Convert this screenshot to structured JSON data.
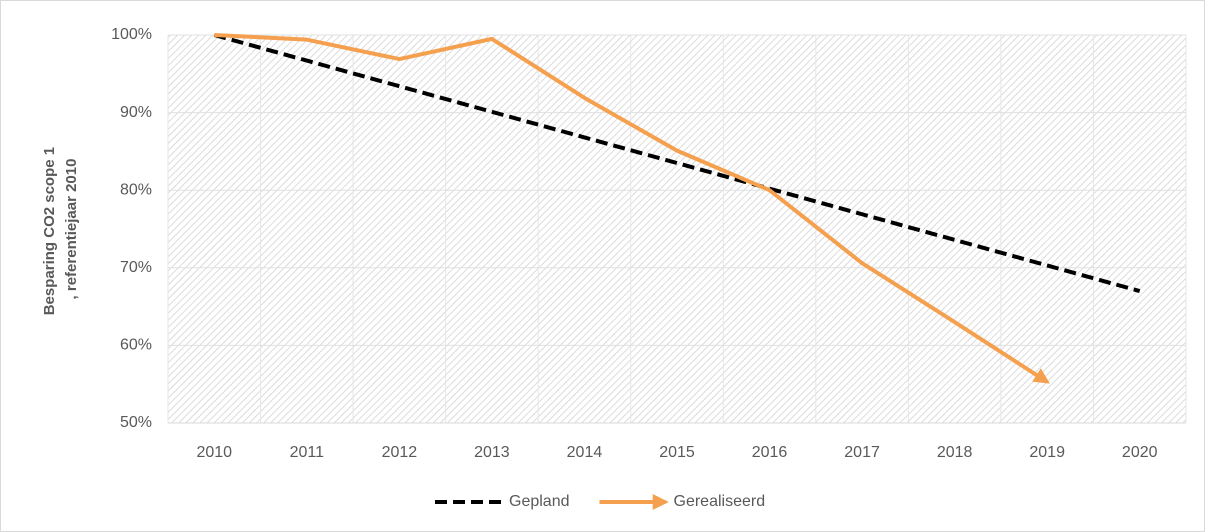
{
  "chart_data": {
    "type": "line",
    "y_label": [
      "Besparing CO2 scope 1",
      ", referentiejaar 2010"
    ],
    "categories": [
      "2010",
      "2011",
      "2012",
      "2013",
      "2014",
      "2015",
      "2016",
      "2017",
      "2018",
      "2019",
      "2020"
    ],
    "series": [
      {
        "name": "Gepland",
        "color": "#000000",
        "dashed": true,
        "values": [
          100,
          96.7,
          93.4,
          90.1,
          86.8,
          83.5,
          80.2,
          76.9,
          73.6,
          70.3,
          67
        ]
      },
      {
        "name": "Gerealiseerd",
        "color": "#f4a04e",
        "arrow": true,
        "values": [
          100,
          99.4,
          96.9,
          99.5,
          91.9,
          85.1,
          80,
          70.6,
          63,
          55.3,
          null
        ]
      }
    ],
    "ylim": [
      50,
      100
    ],
    "yticks": [
      {
        "value": 50,
        "label": "50%"
      },
      {
        "value": 60,
        "label": "60%"
      },
      {
        "value": 70,
        "label": "70%"
      },
      {
        "value": 80,
        "label": "80%"
      },
      {
        "value": 90,
        "label": "90%"
      },
      {
        "value": 100,
        "label": "100%"
      }
    ],
    "grid": true,
    "legend": "bottom"
  }
}
